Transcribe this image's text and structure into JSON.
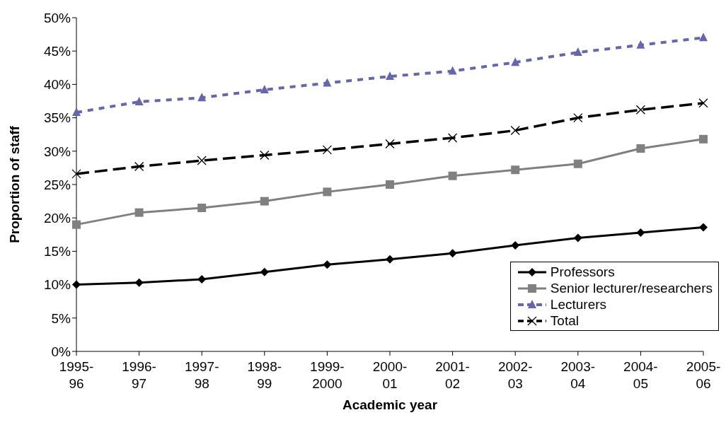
{
  "chart_data": {
    "type": "line",
    "xlabel": "Academic year",
    "ylabel": "Proportion of staff",
    "categories": [
      "1995-96",
      "1996-97",
      "1997-98",
      "1998-99",
      "1999-2000",
      "2000-01",
      "2001-02",
      "2002-03",
      "2003-04",
      "2004-05",
      "2005-06"
    ],
    "series": [
      {
        "name": "Professors",
        "color": "#000000",
        "marker": "diamond",
        "line_style": "solid",
        "values": [
          10.0,
          10.3,
          10.8,
          11.9,
          13.0,
          13.8,
          14.7,
          15.9,
          17.0,
          17.8,
          18.6
        ]
      },
      {
        "name": "Senior lecturer/researchers",
        "color": "#808080",
        "marker": "square",
        "line_style": "solid",
        "values": [
          19.0,
          20.8,
          21.5,
          22.5,
          23.9,
          25.0,
          26.3,
          27.2,
          28.1,
          30.4,
          31.8
        ]
      },
      {
        "name": "Lecturers",
        "color": "#6666aa",
        "marker": "triangle",
        "line_style": "dotted",
        "values": [
          35.8,
          37.4,
          38.0,
          39.2,
          40.2,
          41.2,
          42.0,
          43.3,
          44.8,
          45.9,
          47.0
        ]
      },
      {
        "name": "Total",
        "color": "#000000",
        "marker": "cross",
        "line_style": "dashed",
        "values": [
          26.6,
          27.7,
          28.6,
          29.4,
          30.2,
          31.1,
          32.0,
          33.1,
          35.0,
          36.2,
          37.2
        ]
      }
    ],
    "ylim": [
      0,
      50
    ],
    "yticks": [
      {
        "value": 0,
        "label": "0%"
      },
      {
        "value": 5,
        "label": "5%"
      },
      {
        "value": 10,
        "label": "10%"
      },
      {
        "value": 15,
        "label": "15%"
      },
      {
        "value": 20,
        "label": "20%"
      },
      {
        "value": 25,
        "label": "25%"
      },
      {
        "value": 30,
        "label": "30%"
      },
      {
        "value": 35,
        "label": "35%"
      },
      {
        "value": 40,
        "label": "40%"
      },
      {
        "value": 45,
        "label": "45%"
      },
      {
        "value": 50,
        "label": "50%"
      }
    ],
    "grid": false,
    "legend": "bottom right"
  }
}
